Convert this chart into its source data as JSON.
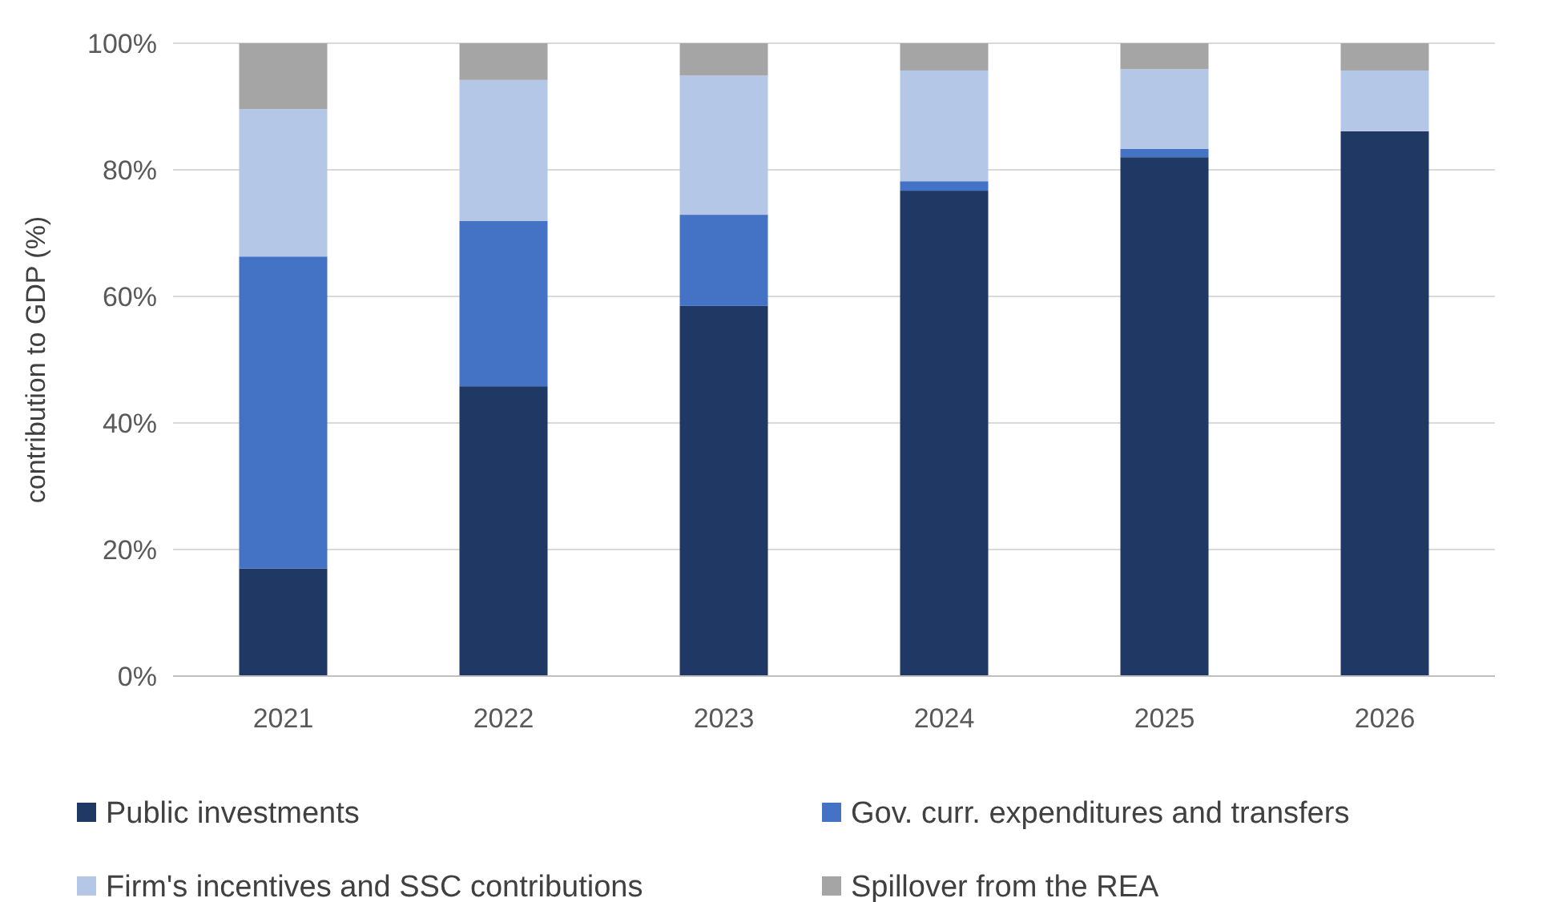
{
  "chart_data": {
    "type": "bar",
    "stacked": true,
    "ylabel": "contribution to GDP (%)",
    "categories": [
      "2021",
      "2022",
      "2023",
      "2024",
      "2025",
      "2026"
    ],
    "series": [
      {
        "name": "Public investments",
        "color": "#1f3864",
        "values": [
          17.0,
          45.8,
          58.5,
          76.7,
          82.0,
          86.1
        ]
      },
      {
        "name": "Gov. curr. expenditures and transfers",
        "color": "#4472c4",
        "values": [
          49.3,
          26.1,
          14.4,
          1.5,
          1.3,
          0
        ]
      },
      {
        "name": "Firm's incentives and SSC contributions",
        "color": "#b4c7e7",
        "values": [
          23.3,
          22.3,
          22.0,
          17.5,
          12.6,
          9.6
        ]
      },
      {
        "name": "Spillover from the REA",
        "color": "#a5a5a5",
        "values": [
          10.4,
          5.8,
          5.1,
          4.3,
          4.1,
          4.3
        ]
      }
    ],
    "ylim": [
      0,
      100
    ],
    "yticks": [
      {
        "value": 0,
        "label": "0%"
      },
      {
        "value": 20,
        "label": "20%"
      },
      {
        "value": 40,
        "label": "40%"
      },
      {
        "value": 60,
        "label": "60%"
      },
      {
        "value": 80,
        "label": "80%"
      },
      {
        "value": 100,
        "label": "100%"
      }
    ],
    "grid": "y",
    "legend": "bottom"
  }
}
